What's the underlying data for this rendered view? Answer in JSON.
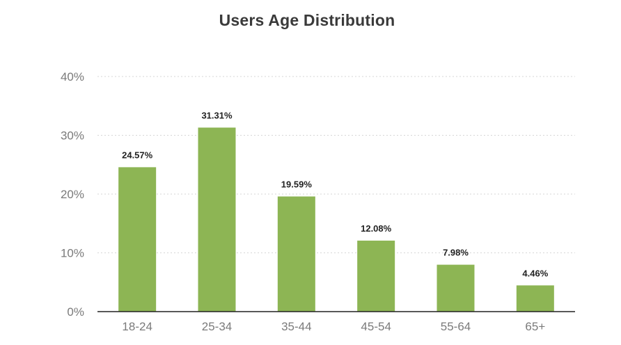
{
  "chart_data": {
    "type": "bar",
    "title": "Users Age Distribution",
    "xlabel": "",
    "ylabel": "",
    "categories": [
      "18-24",
      "25-34",
      "35-44",
      "45-54",
      "55-64",
      "65+"
    ],
    "values": [
      24.57,
      31.31,
      19.59,
      12.08,
      7.98,
      4.46
    ],
    "data_labels": [
      "24.57%",
      "31.31%",
      "19.59%",
      "12.08%",
      "7.98%",
      "4.46%"
    ],
    "ylim": [
      0,
      40
    ],
    "y_ticks": [
      0,
      10,
      20,
      30,
      40
    ],
    "y_tick_labels": [
      "0%",
      "10%",
      "20%",
      "30%",
      "40%"
    ],
    "grid": true,
    "legend": "none",
    "colors": {
      "bar": "#8db554",
      "title": "#3a3a3a",
      "tick_label": "#7a7a7a",
      "data_label": "#222222",
      "grid": "#d6d6d6",
      "axis": "#222222"
    }
  }
}
